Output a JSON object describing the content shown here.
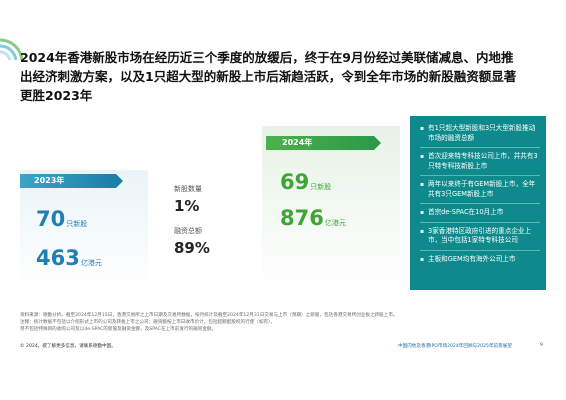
{
  "title": "2024年香港新股市场在经历近三个季度的放缓后，终于在9月份经过美联储减息、内地推出经济刺激方案，以及1只超大型的新股上市后渐趋活跃，令到全年市场的新股融资额显著更胜2023年",
  "card_2023": {
    "year_tag": "2023年",
    "ipo_count": "70",
    "ipo_unit": "只新股",
    "funds": "463",
    "funds_unit": "亿港元"
  },
  "changes": {
    "ipo_label": "新股数量",
    "ipo_value": "1%",
    "funds_label": "融资总额",
    "funds_value": "89%"
  },
  "card_2024": {
    "year_tag": "2024年",
    "ipo_count": "69",
    "ipo_unit": "只新股",
    "funds": "876",
    "funds_unit": "亿港元"
  },
  "highlights": [
    "有1只超大型新股和3只大型新股推动市场的融资总额",
    "首次迎来特专科技公司上市，并共有3只特专科技新股上市",
    "两年以来终于有GEM新股上市，全年共有3只GEM新股上市",
    "首宗de-SPAC在10月上市",
    "3家香港特区政府引进的重点企业上市，当中包括1家特专科技公司",
    "主板和GEM均有海外公司上市"
  ],
  "footnote": [
    "资料来源：德勤分析。截至2024年12月15日，香港交易所之上市日期及交易所数据，按月统计及截至2024年12月31日交易与上市（预期）之新股，包括香港交易所创业板之新股上市。",
    "注释：统计数据不包括以介绍形式上市的公司及转板上市之公司；融资额按上市日收市价计，包括超额配股权的行使（如有）。",
    "另不包括特殊目的收购公司及以de-SPAC的新股及融资金额，及SPAC在上市前发行的融资金额。"
  ],
  "bottom_left": "© 2024。欲了解更多信息，请联系德勤中国。",
  "bottom_right": "中国内地及香港IPO市场2024年回顾与2025年前景展望",
  "page_number": "9",
  "colors": {
    "blue": "#1f7fb2",
    "green": "#3fa535",
    "teal_panel": "#0f8a8c"
  }
}
